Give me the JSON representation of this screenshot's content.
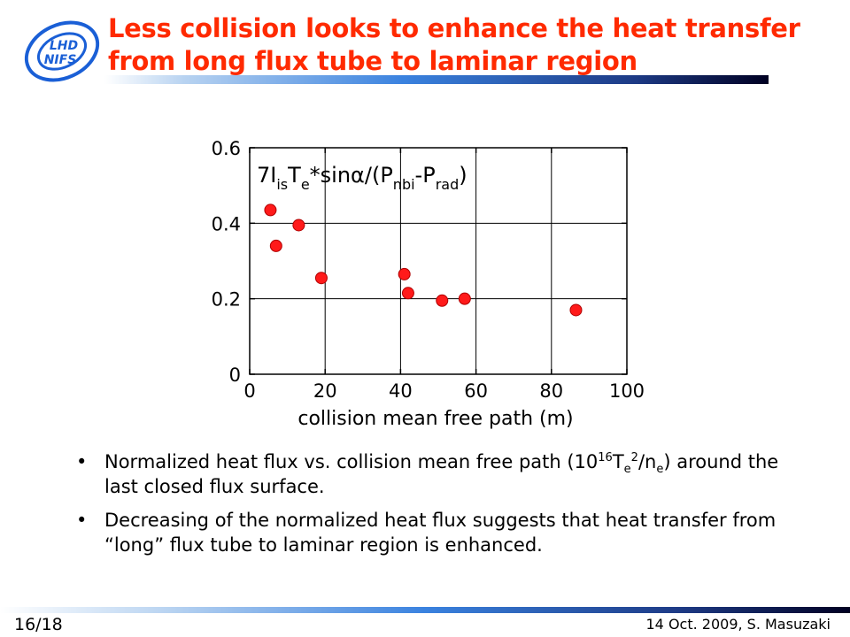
{
  "slide": {
    "title": "Less collision looks to enhance the heat transfer from long flux tube to laminar region",
    "logo_text_top": "LHD",
    "logo_text_bottom": "NIFS",
    "page_number": "16/18",
    "footer_credit": "14 Oct. 2009, S. Masuzaki"
  },
  "colors": {
    "title": "#ff2a00",
    "marker": "#ff1a1a",
    "logo": "#1a5fd6"
  },
  "bullets": [
    {
      "prefix": "Normalized heat flux vs. collision mean free path (10",
      "sup1": "16",
      "mid1": "T",
      "sub1": "e",
      "sup2": "2",
      "mid2": "/n",
      "sub2": "e",
      "suffix": ") around the last closed flux surface."
    },
    {
      "text": "Decreasing of the normalized heat flux suggests that heat transfer from “long” flux tube to laminar region is enhanced."
    }
  ],
  "chart_data": {
    "type": "scatter",
    "xlabel": "collision mean free path (m)",
    "ylabel": "",
    "annotation": {
      "p1": "7I",
      "s1": "is",
      "p2": "T",
      "s2": "e",
      "p3": "*sin",
      "alpha": "α",
      "p4": "/(P",
      "s3": "nbi",
      "p5": "-P",
      "s4": "rad",
      "p6": ")"
    },
    "xlim": [
      0,
      100
    ],
    "ylim": [
      0,
      0.6
    ],
    "xticks": [
      0,
      20,
      40,
      60,
      80,
      100
    ],
    "yticks": [
      0,
      0.2,
      0.4,
      0.6
    ],
    "xtick_labels": [
      "0",
      "20",
      "40",
      "60",
      "80",
      "100"
    ],
    "ytick_labels": [
      "0",
      "0.2",
      "0.4",
      "0.6"
    ],
    "grid": true,
    "series": [
      {
        "x": [
          5.5,
          7,
          13,
          19,
          41,
          42,
          51,
          57,
          86.5
        ],
        "y": [
          0.435,
          0.34,
          0.395,
          0.255,
          0.265,
          0.215,
          0.195,
          0.2,
          0.17
        ]
      }
    ]
  }
}
